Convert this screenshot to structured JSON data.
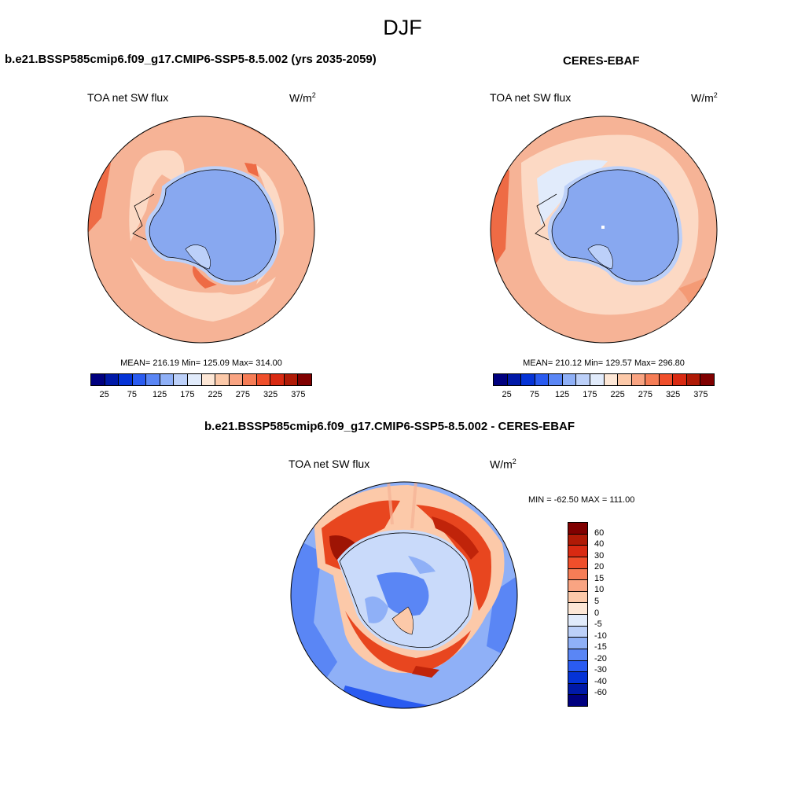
{
  "figure": {
    "season": "DJF"
  },
  "panels": [
    {
      "id": "model",
      "title": "b.e21.BSSP585cmip6.f09_g17.CMIP6-SSP5-8.5.002 (yrs 2035-2059)",
      "variable": "TOA net SW flux",
      "units_base": "W/m",
      "units_exp": "2",
      "stats": "MEAN= 216.19  Min= 125.09  Max= 314.00"
    },
    {
      "id": "obs",
      "title": "CERES-EBAF",
      "variable": "TOA net SW flux",
      "units_base": "W/m",
      "units_exp": "2",
      "stats": "MEAN= 210.12  Min= 129.57  Max= 296.80"
    },
    {
      "id": "diff",
      "title": "b.e21.BSSP585cmip6.f09_g17.CMIP6-SSP5-8.5.002 - CERES-EBAF",
      "variable": "TOA net SW flux",
      "units_base": "W/m",
      "units_exp": "2",
      "stats": "MIN = -62.50 MAX = 111.00"
    }
  ],
  "colorbars": {
    "absolute": {
      "colors": [
        "#00007f",
        "#0019a8",
        "#0533d6",
        "#2a5bf0",
        "#5a86f5",
        "#8fb0f7",
        "#bcd0f9",
        "#e1ebfb",
        "#fde7d6",
        "#fcc9a9",
        "#f9a482",
        "#f67d56",
        "#f04f2b",
        "#d92a12",
        "#b01a06",
        "#800000"
      ],
      "tick_labels": [
        "25",
        "75",
        "125",
        "175",
        "225",
        "275",
        "325",
        "375"
      ]
    },
    "difference": {
      "colors": [
        "#800000",
        "#b01a06",
        "#d92a12",
        "#f04f2b",
        "#f67d56",
        "#f9a482",
        "#fcc9a9",
        "#fde7d6",
        "#e1ebfb",
        "#bcd0f9",
        "#8fb0f7",
        "#5a86f5",
        "#2a5bf0",
        "#0533d6",
        "#0019a8",
        "#00007f"
      ],
      "tick_labels": [
        "60",
        "40",
        "30",
        "20",
        "15",
        "10",
        "5",
        "0",
        "-5",
        "-10",
        "-15",
        "-20",
        "-30",
        "-40",
        "-60"
      ]
    }
  },
  "colors": {
    "ice_blue": "#88a8f0",
    "ocean_light": "#f6b396",
    "ocean_pale": "#fcd9c4",
    "ocean_mid": "#f49a75",
    "ocean_dark": "#ee6b45",
    "diff_red": "#e8461f",
    "diff_darkred": "#9e1404",
    "diff_blue": "#5a86f5",
    "diff_paleblue": "#c9dafa"
  }
}
